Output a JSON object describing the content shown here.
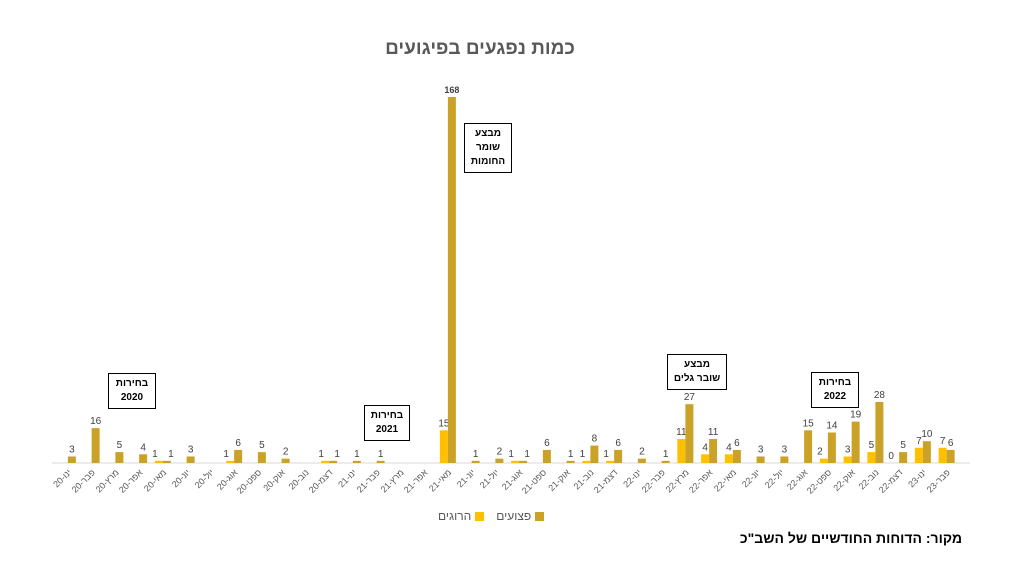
{
  "chart_data": {
    "type": "bar",
    "title": "כמות נפגעים בפיגועים",
    "xlabel": "",
    "ylabel": "",
    "grid": false,
    "legend_position": "bottom",
    "categories": [
      "ינו-20",
      "פבר-20",
      "מרץ-20",
      "אפר-20",
      "מאי-20",
      "יונ-20",
      "יול-20",
      "אוג-20",
      "ספט-20",
      "אוק-20",
      "נוב-20",
      "דצמ-20",
      "ינו-21",
      "פבר-21",
      "מרץ-21",
      "אפר-21",
      "מאי-21",
      "יונ-21",
      "יול-21",
      "אוג-21",
      "ספט-21",
      "אוק-21",
      "נוב-21",
      "דצמ-21",
      "ינו-22",
      "פבר-22",
      "מרץ-22",
      "אפר-22",
      "מאי-22",
      "יונ-22",
      "יול-22",
      "אוג-22",
      "ספט-22",
      "אוק-22",
      "נוב-22",
      "דצמ-22",
      "ינו-23",
      "פבר-23"
    ],
    "series": [
      {
        "name": "הרוגים",
        "color": "#FFC000",
        "values": [
          null,
          null,
          null,
          null,
          1,
          null,
          null,
          1,
          null,
          null,
          null,
          1,
          null,
          null,
          null,
          null,
          15,
          null,
          null,
          1,
          null,
          null,
          1,
          1,
          null,
          null,
          11,
          4,
          4,
          null,
          null,
          null,
          2,
          3,
          5,
          0,
          7,
          7
        ]
      },
      {
        "name": "פצועים",
        "color": "#C9A227",
        "values": [
          3,
          16,
          5,
          4,
          1,
          3,
          null,
          6,
          5,
          2,
          null,
          1,
          1,
          1,
          null,
          null,
          168,
          1,
          2,
          1,
          6,
          1,
          8,
          6,
          2,
          1,
          27,
          11,
          6,
          3,
          3,
          15,
          14,
          19,
          28,
          5,
          10,
          6
        ]
      }
    ],
    "annotations": [
      {
        "text": [
          "בחירות",
          "2020"
        ],
        "near": "פבר-20"
      },
      {
        "text": [
          "בחירות",
          "2021"
        ],
        "near": "פבר-21"
      },
      {
        "text": [
          "מבצע",
          "שומר",
          "החומות"
        ],
        "near": "מאי-21"
      },
      {
        "text": [
          "מבצע",
          "שובר גלים"
        ],
        "near": "מרץ-22"
      },
      {
        "text": [
          "בחירות",
          "2022"
        ],
        "near": "אוק-22"
      }
    ]
  },
  "header": {
    "title": "כמות נפגעים בפיגועים"
  },
  "legend": {
    "items": [
      {
        "label": "פצועים",
        "color": "#C9A227"
      },
      {
        "label": "הרוגים",
        "color": "#FFC000"
      }
    ]
  },
  "footer": {
    "source": "מקור: הדוחות החודשיים של השב\"כ"
  },
  "annotations": {
    "elections_2020": [
      "בחירות",
      "2020"
    ],
    "elections_2021": [
      "בחירות",
      "2021"
    ],
    "guardian_of_walls": [
      "מבצע",
      "שומר",
      "החומות"
    ],
    "breakwater": [
      "מבצע",
      "שובר גלים"
    ],
    "elections_2022": [
      "בחירות",
      "2022"
    ]
  }
}
